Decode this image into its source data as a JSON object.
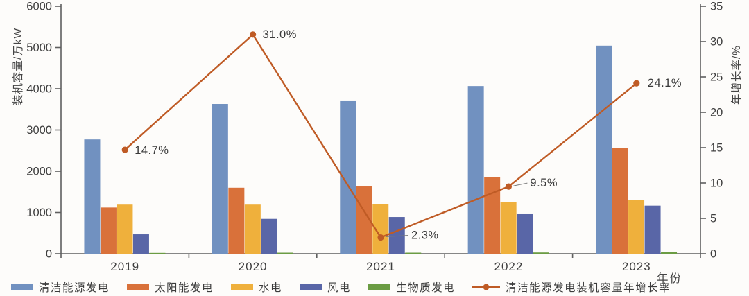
{
  "chart_data": {
    "type": "bar",
    "title": "",
    "categories": [
      "2019",
      "2020",
      "2021",
      "2022",
      "2023"
    ],
    "series": [
      {
        "kind": "bar",
        "name": "清洁能源发电",
        "color": "#7191C0",
        "axis": "left",
        "values": [
          2770,
          3630,
          3715,
          4065,
          5045
        ]
      },
      {
        "kind": "bar",
        "name": "太阳能发电",
        "color": "#D9713A",
        "axis": "left",
        "values": [
          1120,
          1600,
          1630,
          1850,
          2565
        ]
      },
      {
        "kind": "bar",
        "name": "水电",
        "color": "#EFB03C",
        "axis": "left",
        "values": [
          1190,
          1190,
          1195,
          1260,
          1310
        ]
      },
      {
        "kind": "bar",
        "name": "风电",
        "color": "#5966A7",
        "axis": "left",
        "values": [
          470,
          845,
          890,
          975,
          1165
        ]
      },
      {
        "kind": "bar",
        "name": "生物质发电",
        "color": "#6B9C43",
        "axis": "left",
        "values": [
          20,
          25,
          25,
          30,
          35
        ]
      },
      {
        "kind": "line",
        "name": "清洁能源发电装机容量年增长率",
        "color": "#BF5B25",
        "axis": "right",
        "values": [
          14.7,
          31.0,
          2.3,
          9.5,
          24.1
        ],
        "point_labels": [
          "14.7%",
          "31.0%",
          "2.3%",
          "9.5%",
          "24.1%"
        ]
      }
    ],
    "left_axis": {
      "label": "装机容量/万kW",
      "min": 0,
      "max": 6000,
      "ticks": [
        "0",
        "1000",
        "2000",
        "3000",
        "4000",
        "5000",
        "6000"
      ]
    },
    "right_axis": {
      "label": "年增长率/%",
      "min": 0,
      "max": 35,
      "ticks": [
        "0",
        "5",
        "10",
        "15",
        "20",
        "25",
        "30",
        "35"
      ]
    },
    "x_axis": {
      "label": "年份"
    },
    "grid": false,
    "legend_position": "bottom"
  },
  "theme": {
    "spine_color": "#5f5f5f",
    "tick_text_color": "#3e3e3e",
    "data_label_color": "#3a3a3a",
    "leader_color": "#7a7a7a",
    "background": "#fdfcfa"
  }
}
